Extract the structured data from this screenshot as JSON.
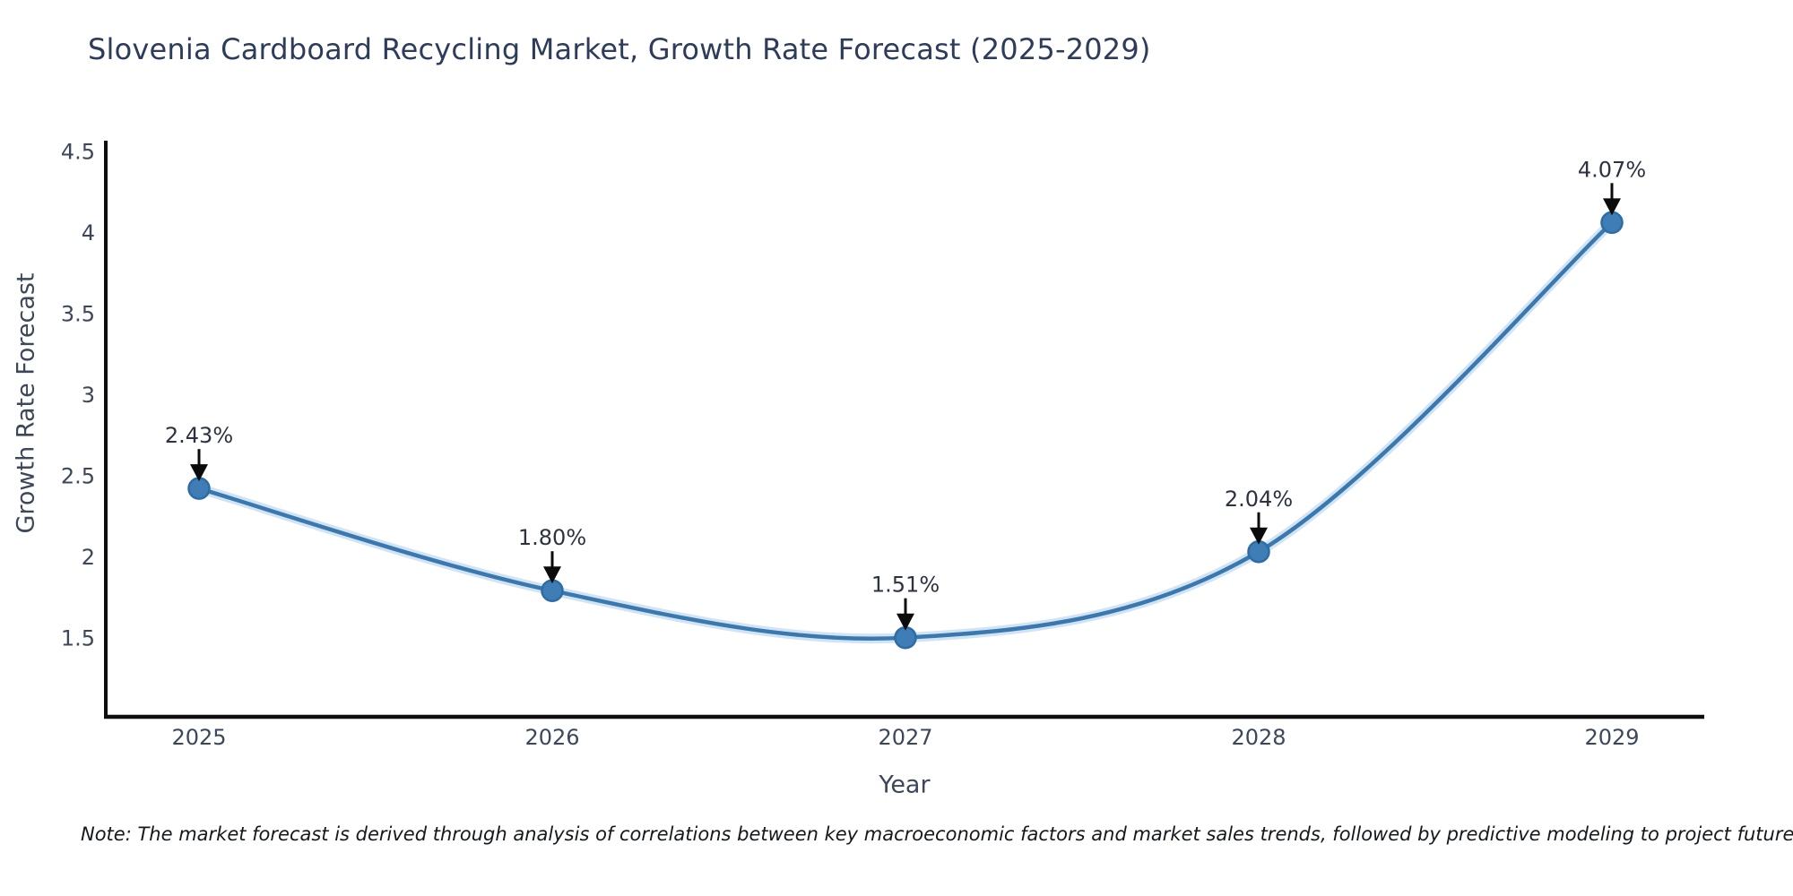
{
  "title": "Slovenia Cardboard Recycling Market, Growth Rate Forecast (2025-2029)",
  "note": "Note: The market forecast is derived through analysis of correlations between key macroeconomic factors and market sales trends, followed by predictive modeling to project future sales",
  "chart_data": {
    "type": "line",
    "x": [
      2025,
      2026,
      2027,
      2028,
      2029
    ],
    "xticklabels": [
      "2025",
      "2026",
      "2027",
      "2028",
      "2029"
    ],
    "series": [
      {
        "name": "Growth Rate Forecast",
        "values": [
          2.43,
          1.8,
          1.51,
          2.04,
          4.07
        ],
        "point_labels": [
          "2.43%",
          "1.80%",
          "1.51%",
          "2.04%",
          "4.07%"
        ]
      }
    ],
    "title": "Slovenia Cardboard Recycling Market, Growth Rate Forecast (2025-2029)",
    "xlabel": "Year",
    "ylabel": "Growth Rate Forecast",
    "yticks": [
      1.5,
      2,
      2.5,
      3,
      3.5,
      4,
      4.5
    ],
    "ytick_labels": [
      "1.5",
      "2",
      "2.5",
      "3",
      "3.5",
      "4",
      "4.5"
    ],
    "ylim": [
      1.02,
      4.58
    ],
    "xlim": [
      2024.74,
      2029.26
    ],
    "grid": false,
    "legend": "none",
    "annotation_style": "black down-arrows from labels to markers",
    "colors": {
      "line": "#3a78b0",
      "line_halo": "#d2e4f4",
      "marker_fill": "#3e7db6",
      "marker_edge": "#2e6ca5",
      "spine": "#0d0d0d",
      "tick_text": "#3c4859",
      "axis_title_text": "#3c4859",
      "annotation_text": "#2c3340",
      "arrow": "#0b0b0b",
      "title_text": "#2e3c5c"
    }
  }
}
